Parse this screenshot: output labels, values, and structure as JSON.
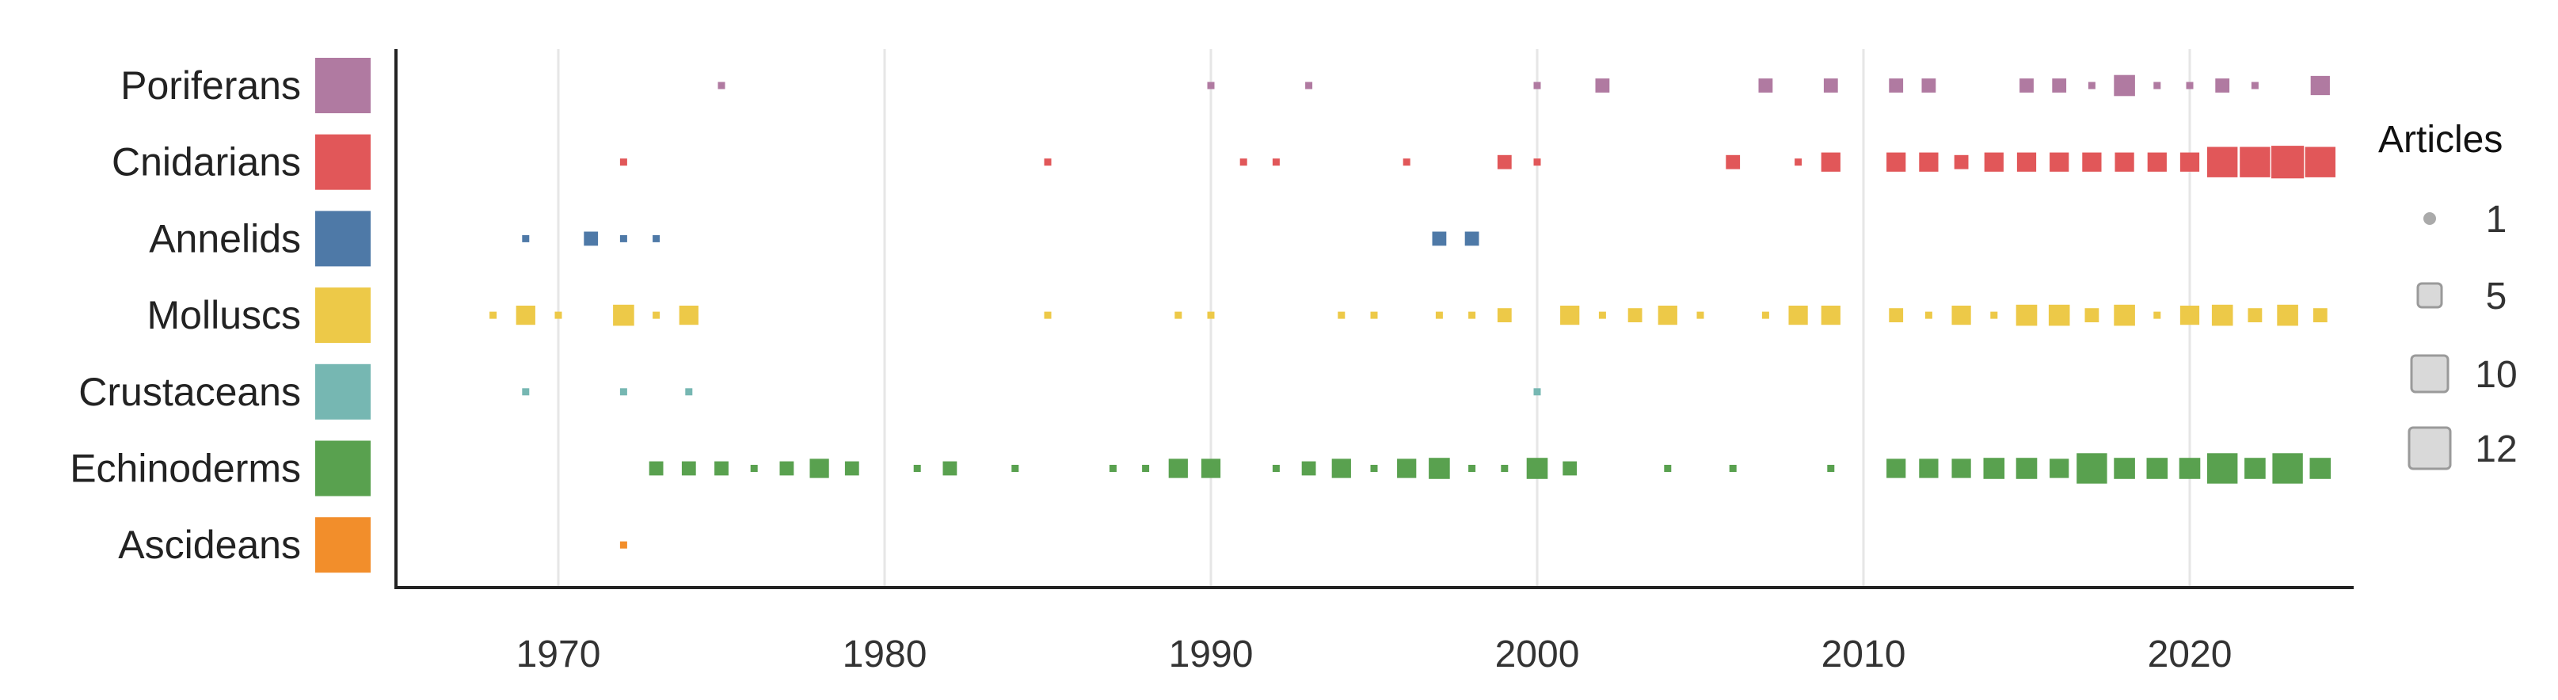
{
  "chart_data": {
    "type": "scatter",
    "title": "",
    "xlabel": "",
    "ylabel": "",
    "xlim": [
      1965,
      2025
    ],
    "xticks": [
      1970,
      1980,
      1990,
      2000,
      2010,
      2020
    ],
    "grid": "vertical",
    "legend_placement": "right",
    "categories": [
      "Poriferans",
      "Cnidarians",
      "Annelids",
      "Molluscs",
      "Crustaceans",
      "Echinoderms",
      "Ascideans"
    ],
    "series": [
      {
        "name": "Poriferans",
        "color": "#b07aa1",
        "points": [
          [
            1975,
            1
          ],
          [
            1990,
            1
          ],
          [
            1993,
            1
          ],
          [
            2000,
            1
          ],
          [
            2002,
            2
          ],
          [
            2007,
            2
          ],
          [
            2009,
            2
          ],
          [
            2011,
            2
          ],
          [
            2012,
            2
          ],
          [
            2015,
            2
          ],
          [
            2016,
            2
          ],
          [
            2017,
            1
          ],
          [
            2018,
            5
          ],
          [
            2019,
            1
          ],
          [
            2020,
            1
          ],
          [
            2021,
            2
          ],
          [
            2022,
            1
          ],
          [
            2024,
            4
          ]
        ]
      },
      {
        "name": "Cnidarians",
        "color": "#e15759",
        "points": [
          [
            1972,
            1
          ],
          [
            1985,
            1
          ],
          [
            1991,
            1
          ],
          [
            1992,
            1
          ],
          [
            1996,
            1
          ],
          [
            1999,
            2
          ],
          [
            2000,
            1
          ],
          [
            2006,
            2
          ],
          [
            2008,
            1
          ],
          [
            2009,
            4
          ],
          [
            2011,
            4
          ],
          [
            2012,
            4
          ],
          [
            2013,
            2
          ],
          [
            2014,
            4
          ],
          [
            2015,
            4
          ],
          [
            2016,
            4
          ],
          [
            2017,
            4
          ],
          [
            2018,
            4
          ],
          [
            2019,
            4
          ],
          [
            2020,
            4
          ],
          [
            2021,
            10
          ],
          [
            2022,
            10
          ],
          [
            2023,
            12
          ],
          [
            2024,
            10
          ]
        ]
      },
      {
        "name": "Annelids",
        "color": "#4e79a7",
        "points": [
          [
            1969,
            1
          ],
          [
            1971,
            2
          ],
          [
            1972,
            1
          ],
          [
            1973,
            1
          ],
          [
            1997,
            2
          ],
          [
            1998,
            2
          ]
        ]
      },
      {
        "name": "Molluscs",
        "color": "#edc948",
        "points": [
          [
            1968,
            1
          ],
          [
            1969,
            4
          ],
          [
            1970,
            1
          ],
          [
            1972,
            5
          ],
          [
            1973,
            1
          ],
          [
            1974,
            4
          ],
          [
            1985,
            1
          ],
          [
            1989,
            1
          ],
          [
            1990,
            1
          ],
          [
            1994,
            1
          ],
          [
            1995,
            1
          ],
          [
            1997,
            1
          ],
          [
            1998,
            1
          ],
          [
            1999,
            2
          ],
          [
            2001,
            4
          ],
          [
            2002,
            1
          ],
          [
            2003,
            2
          ],
          [
            2004,
            4
          ],
          [
            2005,
            1
          ],
          [
            2007,
            1
          ],
          [
            2008,
            4
          ],
          [
            2009,
            4
          ],
          [
            2011,
            2
          ],
          [
            2012,
            1
          ],
          [
            2013,
            4
          ],
          [
            2014,
            1
          ],
          [
            2015,
            5
          ],
          [
            2016,
            5
          ],
          [
            2017,
            2
          ],
          [
            2018,
            5
          ],
          [
            2019,
            1
          ],
          [
            2020,
            4
          ],
          [
            2021,
            5
          ],
          [
            2022,
            2
          ],
          [
            2023,
            5
          ],
          [
            2024,
            2
          ]
        ]
      },
      {
        "name": "Crustaceans",
        "color": "#76b7b2",
        "points": [
          [
            1969,
            1
          ],
          [
            1972,
            1
          ],
          [
            1974,
            1
          ],
          [
            2000,
            1
          ]
        ]
      },
      {
        "name": "Echinoderms",
        "color": "#59a14f",
        "points": [
          [
            1973,
            2
          ],
          [
            1974,
            2
          ],
          [
            1975,
            2
          ],
          [
            1976,
            1
          ],
          [
            1977,
            2
          ],
          [
            1978,
            4
          ],
          [
            1979,
            2
          ],
          [
            1981,
            1
          ],
          [
            1982,
            2
          ],
          [
            1984,
            1
          ],
          [
            1987,
            1
          ],
          [
            1988,
            1
          ],
          [
            1989,
            4
          ],
          [
            1990,
            4
          ],
          [
            1992,
            1
          ],
          [
            1993,
            2
          ],
          [
            1994,
            4
          ],
          [
            1995,
            1
          ],
          [
            1996,
            4
          ],
          [
            1997,
            5
          ],
          [
            1998,
            1
          ],
          [
            1999,
            1
          ],
          [
            2000,
            5
          ],
          [
            2001,
            2
          ],
          [
            2004,
            1
          ],
          [
            2006,
            1
          ],
          [
            2009,
            1
          ],
          [
            2011,
            4
          ],
          [
            2012,
            4
          ],
          [
            2013,
            4
          ],
          [
            2014,
            5
          ],
          [
            2015,
            5
          ],
          [
            2016,
            4
          ],
          [
            2017,
            10
          ],
          [
            2018,
            5
          ],
          [
            2019,
            5
          ],
          [
            2020,
            5
          ],
          [
            2021,
            10
          ],
          [
            2022,
            5
          ],
          [
            2023,
            10
          ],
          [
            2024,
            5
          ]
        ]
      },
      {
        "name": "Ascideans",
        "color": "#f28e2b",
        "points": [
          [
            1972,
            1
          ]
        ]
      }
    ],
    "size_legend": {
      "title": "Articles",
      "items": [
        {
          "label": "1",
          "value": 1
        },
        {
          "label": "5",
          "value": 5
        },
        {
          "label": "10",
          "value": 10
        },
        {
          "label": "12",
          "value": 12
        }
      ]
    }
  }
}
